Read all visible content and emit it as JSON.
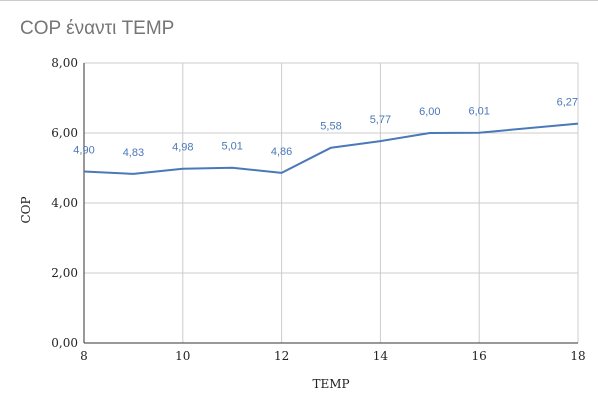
{
  "chart_data": {
    "type": "line",
    "title": "COP έναντι TEMP",
    "xlabel": "TEMP",
    "ylabel": "COP",
    "xlim": [
      8,
      18
    ],
    "ylim": [
      0,
      8
    ],
    "xticks": [
      8,
      10,
      12,
      14,
      16,
      18
    ],
    "yticks": [
      "0,00",
      "2,00",
      "4,00",
      "6,00",
      "8,00"
    ],
    "grid": true,
    "series": [
      {
        "x": [
          8,
          9,
          10,
          11,
          12,
          13,
          14,
          15,
          16,
          18
        ],
        "values": [
          4.9,
          4.83,
          4.98,
          5.01,
          4.86,
          5.58,
          5.77,
          6.0,
          6.01,
          6.27
        ],
        "labels": [
          "4,90",
          "4,83",
          "4,98",
          "5,01",
          "4,86",
          "5,58",
          "5,77",
          "6,00",
          "6,01",
          "6,27"
        ],
        "color": "#4a78b8"
      }
    ],
    "colors": {
      "grid": "#cccccc",
      "axis": "#333333",
      "title": "#757575",
      "label": "#4a78b8"
    }
  }
}
